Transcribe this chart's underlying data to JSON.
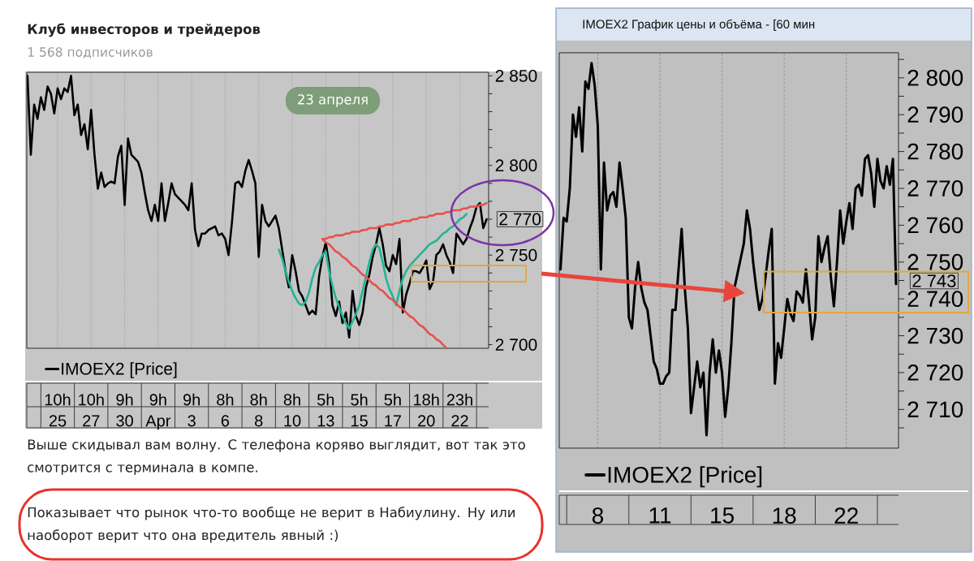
{
  "chart_data": [
    {
      "type": "line",
      "title": "Клуб инвесторов и трейдеров",
      "subtitle": "1 568 подписчиков",
      "annotations": [
        "23 апреля",
        "2 770",
        "Выше скидывал вам волну. С телефона коряво выглядит, вот так это смотрится с терминала в компе.",
        "Показывает что рынок что-то вообще не верит в Набиулину. Ну или наоборот верит что она вредитель явный :)"
      ],
      "categories": [
        null,
        null,
        null,
        null,
        null,
        null,
        null,
        null,
        null,
        "10h\n25",
        null,
        null,
        null,
        null,
        null,
        null,
        null,
        null,
        null,
        "10h\n27",
        null,
        null,
        null,
        null,
        null,
        null,
        null,
        null,
        null,
        "9h\n30",
        null,
        null,
        null,
        null,
        null,
        null,
        null,
        null,
        null,
        "9h\nApr",
        null,
        null,
        null,
        null,
        null,
        null,
        null,
        null,
        null,
        "9h\n3",
        null,
        null,
        null,
        null,
        null,
        null,
        null,
        null,
        null,
        "8h\n6",
        null,
        null,
        null,
        null,
        null,
        null,
        null,
        null,
        null,
        "8h\n8",
        null,
        null,
        null,
        null,
        null,
        null,
        null,
        null,
        null,
        "8h\n10",
        null,
        null,
        null,
        null,
        null,
        null,
        null,
        null,
        null,
        "5h\n13",
        null,
        null,
        null,
        null,
        null,
        null,
        null,
        null,
        null,
        "5h\n15",
        null,
        null,
        null,
        null,
        null,
        null,
        null,
        null,
        null,
        "5h\n17",
        null,
        null,
        null,
        null,
        null,
        null,
        null,
        null,
        null,
        "18h\n20",
        null,
        null,
        null,
        null,
        null,
        null,
        null,
        null,
        null,
        "23h\n22",
        null,
        null,
        null,
        null,
        null,
        null,
        null,
        null
      ],
      "series": [
        {
          "name": "IMOEX2 [Price]",
          "color": "#000000",
          "values": [
            2850,
            2806,
            2834,
            2826,
            2838,
            2831,
            2844,
            2840,
            2829,
            2843,
            2837,
            2843,
            2841,
            2850,
            2828,
            2834,
            2817,
            2823,
            2809,
            2831,
            2806,
            2787,
            2796,
            2788,
            2790,
            2791,
            2790,
            2805,
            2811,
            2778,
            2815,
            2806,
            2804,
            2802,
            2796,
            2785,
            2775,
            2769,
            2778,
            2769,
            2790,
            2769,
            2779,
            2790,
            2784,
            2782,
            2780,
            2778,
            2775,
            2790,
            2764,
            2755,
            2762,
            2762,
            2764,
            2765,
            2766,
            2761,
            2762,
            2759,
            2750,
            2768,
            2790,
            2791,
            2788,
            2797,
            2803,
            2797,
            2790,
            2749,
            2778,
            2769,
            2766,
            2769,
            2772,
            2765,
            2753,
            2741,
            2732,
            2750,
            2741,
            2730,
            2727,
            2722,
            2717,
            2719,
            2717,
            2738,
            2749,
            2757,
            2745,
            2722,
            2716,
            2724,
            2712,
            2718,
            2704,
            2730,
            2716,
            2711,
            2718,
            2732,
            2739,
            2749,
            2756,
            2765,
            2756,
            2744,
            2741,
            2750,
            2745,
            2759,
            2718,
            2728,
            2734,
            2741,
            2741,
            2740,
            2743,
            2747,
            2731,
            2735,
            2750,
            2752,
            2756,
            2750,
            2746,
            2740,
            2762,
            2759,
            2756,
            2759,
            2765,
            2770,
            2777,
            2779,
            2765,
            2770
          ]
        },
        {
          "color": "#22b496",
          "values": [
            null,
            null,
            null,
            null,
            null,
            null,
            null,
            null,
            null,
            null,
            null,
            null,
            null,
            null,
            null,
            null,
            null,
            null,
            null,
            null,
            null,
            null,
            null,
            null,
            null,
            null,
            null,
            null,
            null,
            null,
            null,
            null,
            null,
            null,
            null,
            null,
            null,
            null,
            null,
            null,
            null,
            null,
            null,
            null,
            null,
            null,
            null,
            null,
            null,
            null,
            null,
            null,
            null,
            null,
            null,
            null,
            null,
            null,
            null,
            null,
            null,
            null,
            null,
            null,
            null,
            null,
            null,
            null,
            null,
            null,
            null,
            null,
            null,
            null,
            null,
            2753,
            2748,
            2741,
            2735,
            2730,
            2726,
            2723,
            2722,
            2724,
            2729,
            2737,
            2743,
            2746,
            2750,
            2752,
            2741,
            2733,
            2726,
            2721,
            2716,
            2712,
            2709,
            2713,
            2717,
            2722,
            2730,
            2738,
            2746,
            2753,
            2756,
            2754,
            2746,
            2737,
            2731,
            2727,
            2722,
            2730,
            2737,
            2741,
            2744,
            2746,
            2748,
            2750,
            2752,
            2754,
            2756,
            2757,
            2758,
            2760,
            2762,
            2763,
            2765,
            2766,
            2768,
            2770,
            2771,
            2773,
            null,
            null,
            null,
            null,
            null,
            null
          ]
        },
        {
          "color": "#e8514d",
          "values": [
            null,
            null,
            null,
            null,
            null,
            null,
            null,
            null,
            null,
            null,
            null,
            null,
            null,
            null,
            null,
            null,
            null,
            null,
            null,
            null,
            null,
            null,
            null,
            null,
            null,
            null,
            null,
            null,
            null,
            null,
            null,
            null,
            null,
            null,
            null,
            null,
            null,
            null,
            null,
            null,
            null,
            null,
            null,
            null,
            null,
            null,
            null,
            null,
            null,
            null,
            null,
            null,
            null,
            null,
            null,
            null,
            null,
            null,
            null,
            null,
            null,
            null,
            null,
            null,
            null,
            null,
            null,
            null,
            null,
            null,
            null,
            null,
            null,
            null,
            null,
            null,
            null,
            null,
            null,
            null,
            null,
            null,
            null,
            null,
            null,
            null,
            null,
            null,
            2759,
            2759,
            2760,
            2760,
            2761,
            2761,
            2761,
            2762,
            2762,
            2763,
            2763,
            2763,
            2764,
            2764,
            2765,
            2765,
            2765,
            2766,
            2766,
            2767,
            2767,
            2767,
            2768,
            2768,
            2769,
            2769,
            2769,
            2770,
            2770,
            2771,
            2771,
            2771,
            2772,
            2772,
            2773,
            2773,
            2773,
            2774,
            2774,
            2775,
            2775,
            2775,
            2776,
            2776,
            2777,
            2777,
            2777,
            2778,
            2778,
            2779
          ]
        },
        {
          "color": "#e8514d",
          "values": [
            null,
            null,
            null,
            null,
            null,
            null,
            null,
            null,
            null,
            null,
            null,
            null,
            null,
            null,
            null,
            null,
            null,
            null,
            null,
            null,
            null,
            null,
            null,
            null,
            null,
            null,
            null,
            null,
            null,
            null,
            null,
            null,
            null,
            null,
            null,
            null,
            null,
            null,
            null,
            null,
            null,
            null,
            null,
            null,
            null,
            null,
            null,
            null,
            null,
            null,
            null,
            null,
            null,
            null,
            null,
            null,
            null,
            null,
            null,
            null,
            null,
            null,
            null,
            null,
            null,
            null,
            null,
            null,
            null,
            null,
            null,
            null,
            null,
            null,
            null,
            null,
            null,
            null,
            null,
            null,
            null,
            null,
            null,
            null,
            null,
            null,
            null,
            null,
            2759,
            2757,
            2756,
            2754,
            2752,
            2751,
            2749,
            2748,
            2746,
            2744,
            2743,
            2741,
            2739,
            2738,
            2736,
            2734,
            2733,
            2731,
            2730,
            2728,
            2726,
            2725,
            2723,
            2721,
            2720,
            2718,
            2716,
            2715,
            2713,
            2711,
            2710,
            2708,
            2706,
            2705,
            2703,
            2702,
            2700,
            2698,
            null,
            null,
            null,
            null,
            null,
            null,
            null,
            null,
            null,
            null,
            null,
            null
          ]
        }
      ],
      "ylim": [
        2698,
        2852
      ],
      "yticks": [
        {
          "value": 2700,
          "label": "2 700"
        },
        {
          "value": 2710,
          "label": null
        },
        {
          "value": 2720,
          "label": null
        },
        {
          "value": 2730,
          "label": null
        },
        {
          "value": 2740,
          "label": null
        },
        {
          "value": 2750,
          "label": "2 750"
        },
        {
          "value": 2760,
          "label": null
        },
        {
          "value": 2770,
          "label": null
        },
        {
          "value": 2780,
          "label": null
        },
        {
          "value": 2790,
          "label": null
        },
        {
          "value": 2800,
          "label": "2 800"
        },
        {
          "value": 2810,
          "label": null
        },
        {
          "value": 2820,
          "label": null
        },
        {
          "value": 2830,
          "label": null
        },
        {
          "value": 2840,
          "label": null
        },
        {
          "value": 2850,
          "label": "2 850"
        }
      ],
      "grid": "x",
      "legend": "bottom left"
    },
    {
      "type": "line",
      "title": "IMOEX2 График цены и объёма - [60 мин",
      "annotations": [
        "2 743"
      ],
      "categories": [
        null,
        null,
        null,
        null,
        null,
        null,
        null,
        null,
        null,
        null,
        null,
        null,
        "8",
        null,
        null,
        null,
        null,
        null,
        null,
        null,
        null,
        null,
        null,
        null,
        null,
        null,
        null,
        null,
        null,
        null,
        null,
        null,
        "11",
        null,
        null,
        null,
        null,
        null,
        null,
        null,
        null,
        null,
        null,
        null,
        null,
        null,
        null,
        null,
        null,
        null,
        null,
        null,
        "15",
        null,
        null,
        null,
        null,
        null,
        null,
        null,
        null,
        null,
        null,
        null,
        null,
        null,
        null,
        null,
        null,
        null,
        null,
        null,
        "18",
        null,
        null,
        null,
        null,
        null,
        null,
        null,
        null,
        null,
        null,
        null,
        null,
        null,
        null,
        null,
        null,
        null,
        null,
        null,
        "22",
        null,
        null,
        null,
        null,
        null,
        null,
        null,
        null,
        null,
        null,
        null,
        null,
        null,
        null,
        null,
        null
      ],
      "series": [
        {
          "name": "IMOEX2 [Price]",
          "color": "#000000",
          "values": [
            2748,
            2762,
            2761,
            2770,
            2790,
            2784,
            2792,
            2780,
            2799,
            2797,
            2804,
            2798,
            2787,
            2748,
            2777,
            2764,
            2768,
            2769,
            2765,
            2777,
            2770,
            2762,
            2735,
            2732,
            2743,
            2750,
            2743,
            2739,
            2737,
            2730,
            2723,
            2721,
            2717,
            2717,
            2719,
            2720,
            2737,
            2737,
            2748,
            2759,
            2743,
            2732,
            2709,
            2716,
            2723,
            2716,
            2720,
            2703,
            2720,
            2729,
            2720,
            2726,
            2720,
            2708,
            2716,
            2728,
            2743,
            2747,
            2751,
            2755,
            2764,
            2759,
            2750,
            2743,
            2737,
            2740,
            2746,
            2753,
            2759,
            2717,
            2728,
            2724,
            2732,
            2740,
            2736,
            2734,
            2742,
            2741,
            2739,
            2748,
            2739,
            2729,
            2735,
            2757,
            2750,
            2754,
            2757,
            2746,
            2738,
            2750,
            2764,
            2755,
            2761,
            2766,
            2759,
            2770,
            2771,
            2768,
            2778,
            2779,
            2774,
            2765,
            2778,
            2772,
            2770,
            2776,
            2771,
            2778,
            2744
          ]
        }
      ],
      "ylim": [
        2699.5,
        2806.8
      ],
      "yticks": [
        {
          "value": 2705,
          "label": null
        },
        {
          "value": 2710,
          "label": "2 710"
        },
        {
          "value": 2715,
          "label": null
        },
        {
          "value": 2720,
          "label": "2 720"
        },
        {
          "value": 2725,
          "label": null
        },
        {
          "value": 2730,
          "label": "2 730"
        },
        {
          "value": 2735,
          "label": null
        },
        {
          "value": 2740,
          "label": "2 740"
        },
        {
          "value": 2745,
          "label": null
        },
        {
          "value": 2750,
          "label": "2 750"
        },
        {
          "value": 2755,
          "label": null
        },
        {
          "value": 2760,
          "label": "2 760"
        },
        {
          "value": 2765,
          "label": null
        },
        {
          "value": 2770,
          "label": "2 770"
        },
        {
          "value": 2775,
          "label": null
        },
        {
          "value": 2780,
          "label": "2 780"
        },
        {
          "value": 2785,
          "label": null
        },
        {
          "value": 2790,
          "label": "2 790"
        },
        {
          "value": 2795,
          "label": null
        },
        {
          "value": 2800,
          "label": "2 800"
        },
        {
          "value": 2805,
          "label": null
        }
      ],
      "grid": "x",
      "legend": "bottom left"
    }
  ]
}
